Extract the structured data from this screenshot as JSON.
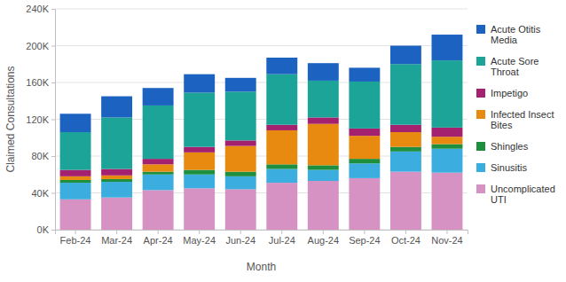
{
  "chart_data": {
    "type": "bar",
    "stacked": true,
    "grid": true,
    "legend": "right",
    "x_label": "Month",
    "y_label": "Claimed Consultations",
    "categories": [
      "Feb-24",
      "Mar-24",
      "Apr-24",
      "May-24",
      "Jun-24",
      "Jul-24",
      "Aug-24",
      "Sep-24",
      "Oct-24",
      "Nov-24"
    ],
    "ylim": [
      0,
      240000
    ],
    "yticks": [
      {
        "value": 0,
        "label": "0K"
      },
      {
        "value": 40000,
        "label": "40K"
      },
      {
        "value": 80000,
        "label": "80K"
      },
      {
        "value": 120000,
        "label": "120K"
      },
      {
        "value": 160000,
        "label": "160K"
      },
      {
        "value": 200000,
        "label": "200K"
      },
      {
        "value": 240000,
        "label": "240K"
      }
    ],
    "series": [
      {
        "name": "Uncomplicated UTI",
        "color": "#d592c3",
        "values": [
          33000,
          35000,
          43000,
          45000,
          44000,
          51000,
          53000,
          56000,
          63000,
          62000
        ]
      },
      {
        "name": "Sinusitis",
        "color": "#3badde",
        "values": [
          18000,
          17000,
          17000,
          15000,
          14000,
          15000,
          12000,
          16000,
          22000,
          26000
        ]
      },
      {
        "name": "Shingles",
        "color": "#1e8f3e",
        "values": [
          3000,
          3000,
          3000,
          5000,
          5000,
          5000,
          5000,
          5000,
          5000,
          5000
        ]
      },
      {
        "name": "Infected Insect Bites",
        "color": "#e98a10",
        "values": [
          4000,
          4000,
          8000,
          19000,
          28000,
          37000,
          45000,
          25000,
          16000,
          8000
        ]
      },
      {
        "name": "Impetigo",
        "color": "#a3216e",
        "values": [
          7000,
          7000,
          6000,
          6000,
          6000,
          6000,
          7000,
          8000,
          8000,
          10000
        ]
      },
      {
        "name": "Acute Sore Throat",
        "color": "#1ba497",
        "values": [
          41000,
          56000,
          58000,
          59000,
          53000,
          55000,
          40000,
          51000,
          66000,
          73000
        ]
      },
      {
        "name": "Acute Otitis Media",
        "color": "#1c62c0",
        "values": [
          20000,
          23000,
          19000,
          20000,
          15000,
          18000,
          19000,
          15000,
          20000,
          28000
        ]
      }
    ]
  }
}
